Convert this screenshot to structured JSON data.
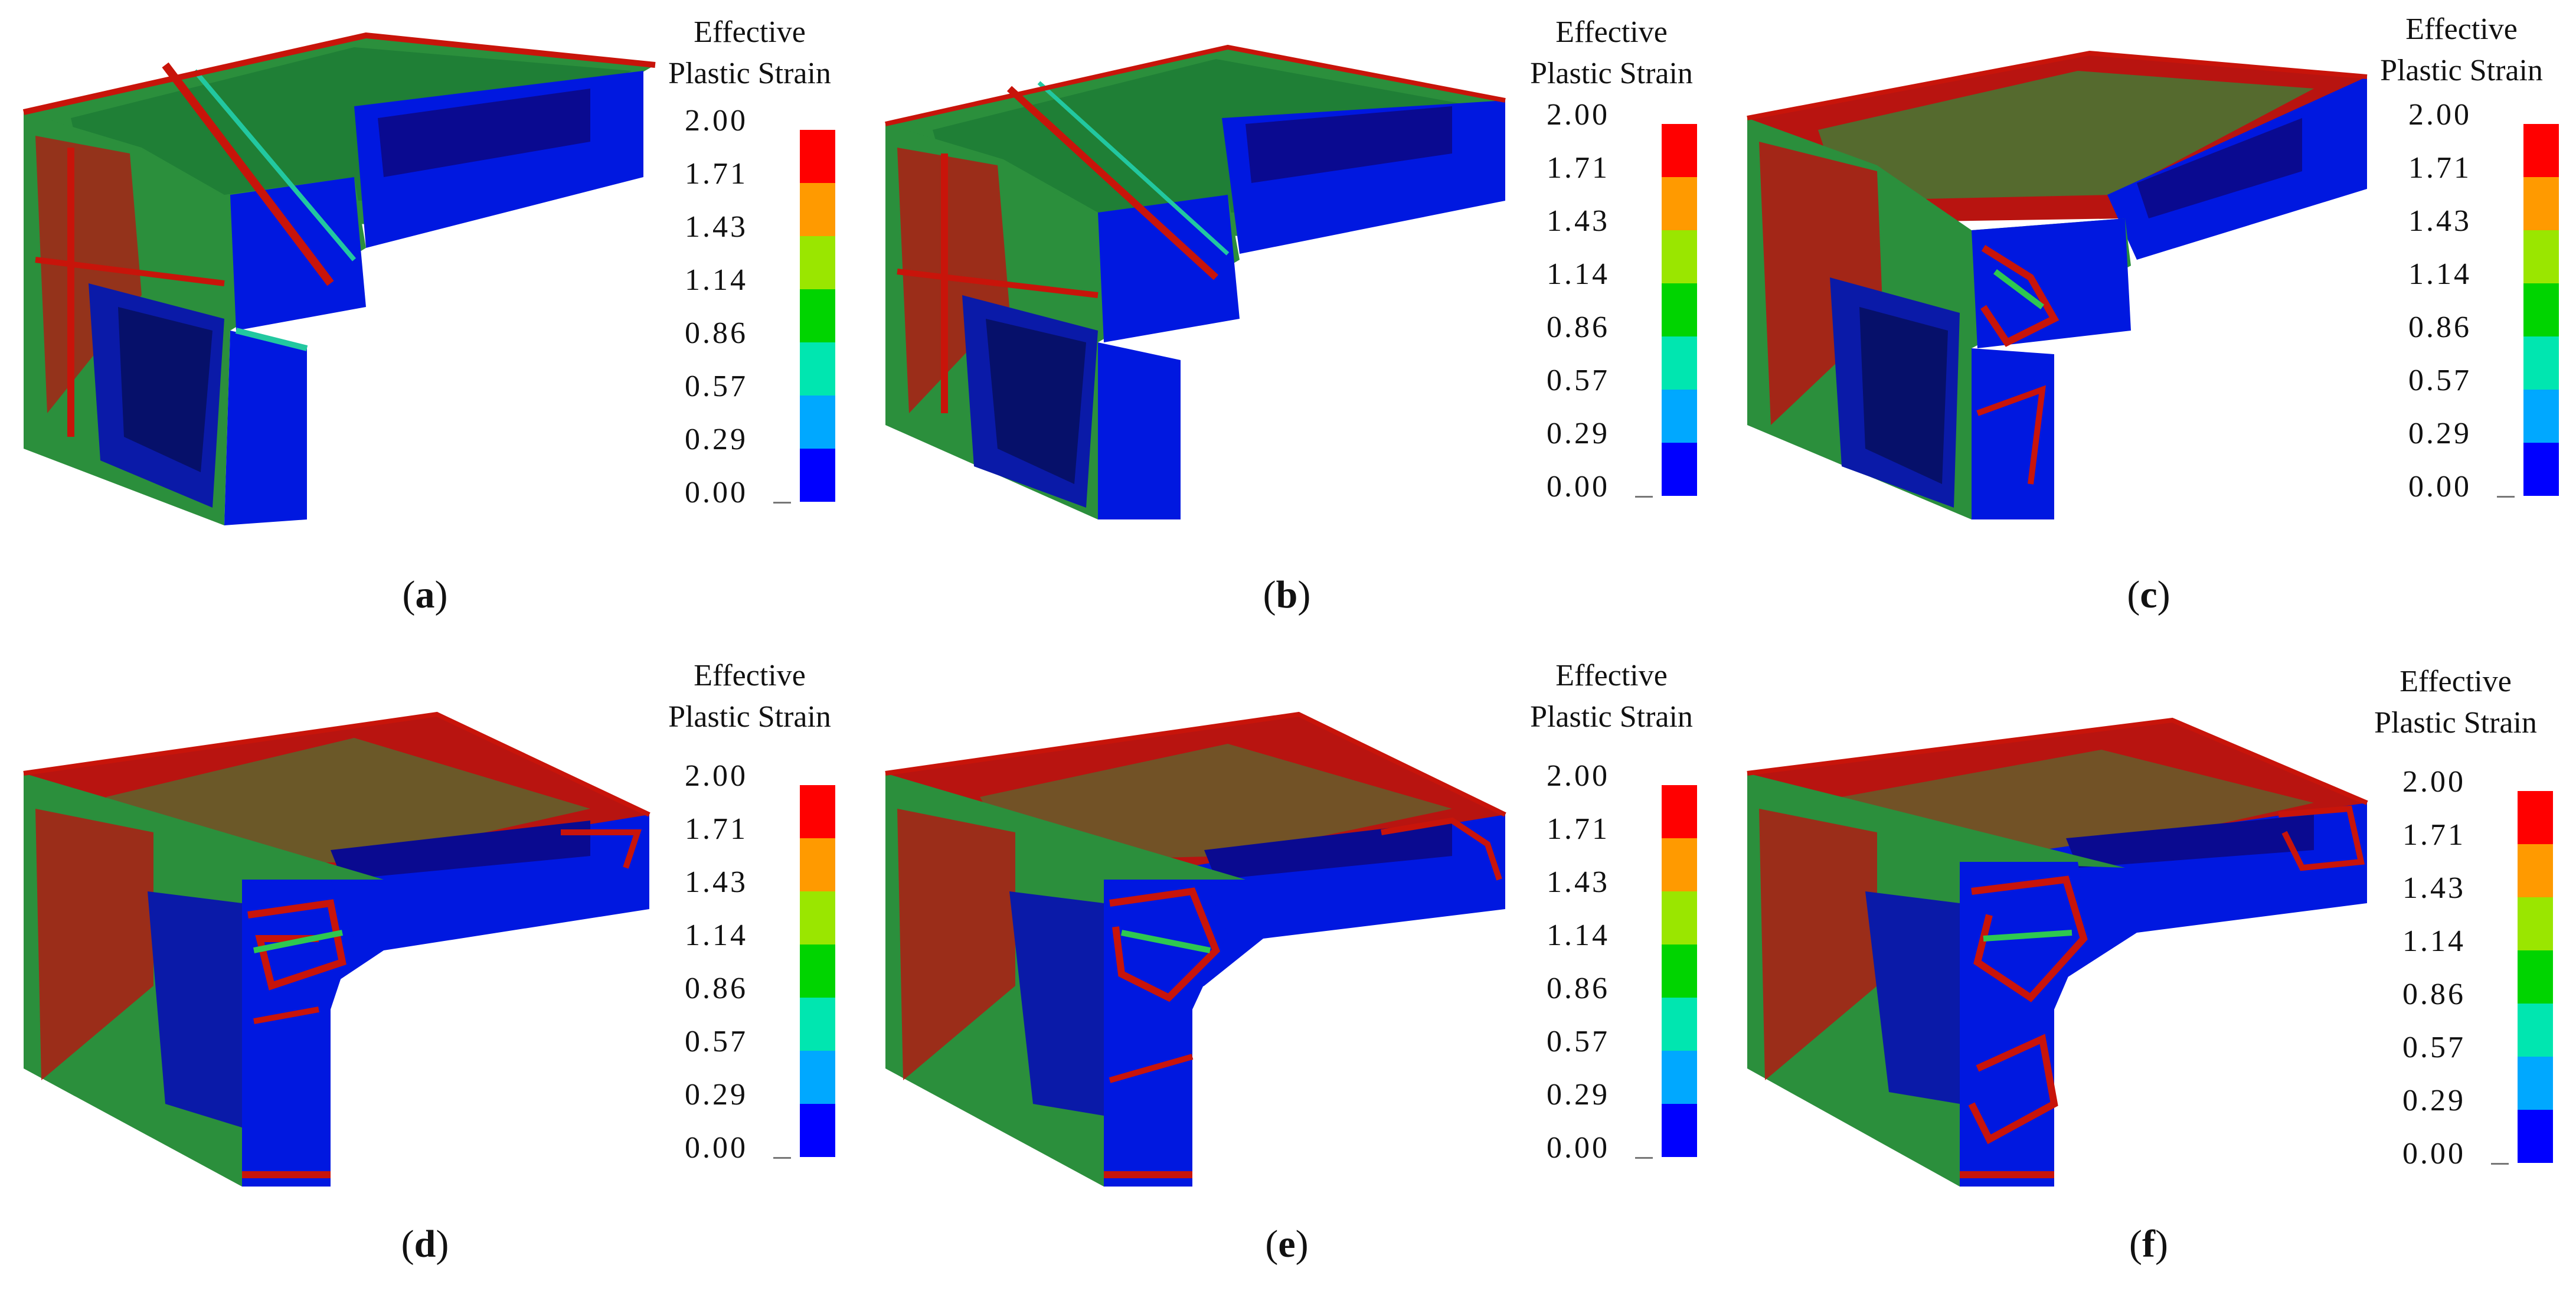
{
  "legend": {
    "title_line1": "Effective",
    "title_line2": "Plastic Strain",
    "ticks": [
      "2.00",
      "1.71",
      "1.43",
      "1.14",
      "0.86",
      "0.57",
      "0.29",
      "0.00"
    ],
    "band_colors": [
      "#ff0000",
      "#ff9a00",
      "#9ae600",
      "#00d400",
      "#00e6b0",
      "#00a8ff",
      "#0000ff"
    ]
  },
  "panels": [
    {
      "id": "a",
      "label": "a",
      "state": "heavily fragmented"
    },
    {
      "id": "b",
      "label": "b",
      "state": "fragmented"
    },
    {
      "id": "c",
      "label": "c",
      "state": "partially cracked"
    },
    {
      "id": "d",
      "label": "d",
      "state": "intact"
    },
    {
      "id": "e",
      "label": "e",
      "state": "intact"
    },
    {
      "id": "f",
      "label": "f",
      "state": "intact"
    }
  ],
  "colors": {
    "high_strain": "#c8140a",
    "mid_strain": "#2a9a3a",
    "low_strain": "#0a1aa8",
    "zero_strain": "#0018e0"
  }
}
